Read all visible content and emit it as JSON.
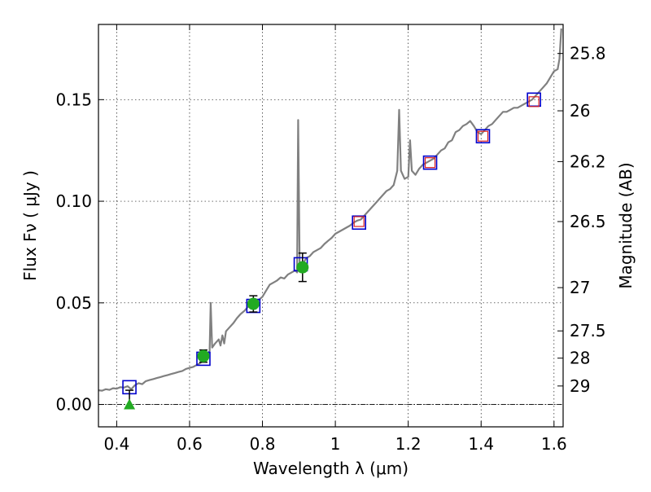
{
  "chart_data": {
    "type": "scatter",
    "title": "",
    "xlabel": "Wavelength  λ (μm)",
    "ylabel": "Flux  Fν  ( μJy )",
    "y2label": "Magnitude (AB)",
    "xlim": [
      0.35,
      1.625
    ],
    "ylim": [
      -0.011,
      0.187
    ],
    "x_ticks": [
      0.4,
      0.6,
      0.8,
      1.0,
      1.2,
      1.4,
      1.6
    ],
    "x_tick_labels": [
      "0.4",
      "0.6",
      "0.8",
      "1",
      "1.2",
      "1.4",
      "1.6"
    ],
    "y_ticks": [
      0.0,
      0.05,
      0.1,
      0.15
    ],
    "y_tick_labels": [
      "0.00",
      "0.05",
      "0.10",
      "0.15"
    ],
    "y2_ticks": [
      {
        "label": "25.8",
        "flux": 0.1727
      },
      {
        "label": "26",
        "flux": 0.1445
      },
      {
        "label": "26.2",
        "flux": 0.1195
      },
      {
        "label": "26.5",
        "flux": 0.09
      },
      {
        "label": "27",
        "flux": 0.0575
      },
      {
        "label": "27.5",
        "flux": 0.0362
      },
      {
        "label": "28",
        "flux": 0.0228
      },
      {
        "label": "29",
        "flux": 0.0091
      }
    ],
    "grid": true,
    "zero_line": true,
    "colors": {
      "model": "#808080",
      "model_photometry": "#0000cc",
      "photometry_points": "#22aa22",
      "photometry_squares": "#dd2222",
      "errorbar": "#000000",
      "zero_line": "#000000"
    },
    "series": [
      {
        "kind": "line",
        "points": [
          [
            0.35,
            0.007
          ],
          [
            0.36,
            0.0068
          ],
          [
            0.37,
            0.0075
          ],
          [
            0.38,
            0.0072
          ],
          [
            0.39,
            0.008
          ],
          [
            0.4,
            0.0078
          ],
          [
            0.41,
            0.0085
          ],
          [
            0.42,
            0.0083
          ],
          [
            0.43,
            0.009
          ],
          [
            0.44,
            0.0075
          ],
          [
            0.45,
            0.0095
          ],
          [
            0.46,
            0.0105
          ],
          [
            0.47,
            0.01
          ],
          [
            0.48,
            0.0115
          ],
          [
            0.49,
            0.012
          ],
          [
            0.5,
            0.0125
          ],
          [
            0.51,
            0.013
          ],
          [
            0.52,
            0.0135
          ],
          [
            0.53,
            0.014
          ],
          [
            0.54,
            0.0145
          ],
          [
            0.55,
            0.015
          ],
          [
            0.56,
            0.0155
          ],
          [
            0.57,
            0.016
          ],
          [
            0.58,
            0.0165
          ],
          [
            0.59,
            0.0175
          ],
          [
            0.6,
            0.018
          ],
          [
            0.61,
            0.0185
          ],
          [
            0.62,
            0.0195
          ],
          [
            0.63,
            0.0205
          ],
          [
            0.64,
            0.022
          ],
          [
            0.65,
            0.024
          ],
          [
            0.655,
            0.0265
          ],
          [
            0.658,
            0.05
          ],
          [
            0.662,
            0.028
          ],
          [
            0.67,
            0.03
          ],
          [
            0.68,
            0.032
          ],
          [
            0.685,
            0.029
          ],
          [
            0.69,
            0.034
          ],
          [
            0.695,
            0.03
          ],
          [
            0.7,
            0.036
          ],
          [
            0.71,
            0.038
          ],
          [
            0.72,
            0.04
          ],
          [
            0.73,
            0.0425
          ],
          [
            0.74,
            0.0445
          ],
          [
            0.75,
            0.046
          ],
          [
            0.76,
            0.048
          ],
          [
            0.77,
            0.049
          ],
          [
            0.78,
            0.05
          ],
          [
            0.79,
            0.0515
          ],
          [
            0.8,
            0.053
          ],
          [
            0.81,
            0.056
          ],
          [
            0.82,
            0.059
          ],
          [
            0.83,
            0.06
          ],
          [
            0.84,
            0.061
          ],
          [
            0.85,
            0.0625
          ],
          [
            0.86,
            0.062
          ],
          [
            0.87,
            0.064
          ],
          [
            0.88,
            0.065
          ],
          [
            0.89,
            0.066
          ],
          [
            0.895,
            0.065
          ],
          [
            0.898,
            0.14
          ],
          [
            0.902,
            0.07
          ],
          [
            0.91,
            0.069
          ],
          [
            0.92,
            0.072
          ],
          [
            0.93,
            0.073
          ],
          [
            0.94,
            0.075
          ],
          [
            0.95,
            0.076
          ],
          [
            0.96,
            0.077
          ],
          [
            0.97,
            0.079
          ],
          [
            0.98,
            0.0805
          ],
          [
            0.99,
            0.082
          ],
          [
            1.0,
            0.084
          ],
          [
            1.01,
            0.085
          ],
          [
            1.02,
            0.086
          ],
          [
            1.03,
            0.087
          ],
          [
            1.04,
            0.088
          ],
          [
            1.05,
            0.0895
          ],
          [
            1.06,
            0.0905
          ],
          [
            1.07,
            0.091
          ],
          [
            1.08,
            0.093
          ],
          [
            1.09,
            0.095
          ],
          [
            1.1,
            0.097
          ],
          [
            1.11,
            0.099
          ],
          [
            1.12,
            0.101
          ],
          [
            1.13,
            0.103
          ],
          [
            1.14,
            0.105
          ],
          [
            1.15,
            0.106
          ],
          [
            1.16,
            0.108
          ],
          [
            1.17,
            0.115
          ],
          [
            1.175,
            0.145
          ],
          [
            1.18,
            0.115
          ],
          [
            1.19,
            0.111
          ],
          [
            1.2,
            0.112
          ],
          [
            1.205,
            0.13
          ],
          [
            1.21,
            0.115
          ],
          [
            1.22,
            0.113
          ],
          [
            1.23,
            0.116
          ],
          [
            1.24,
            0.118
          ],
          [
            1.25,
            0.119
          ],
          [
            1.26,
            0.12
          ],
          [
            1.27,
            0.121
          ],
          [
            1.28,
            0.123
          ],
          [
            1.29,
            0.125
          ],
          [
            1.3,
            0.126
          ],
          [
            1.31,
            0.129
          ],
          [
            1.32,
            0.13
          ],
          [
            1.33,
            0.134
          ],
          [
            1.34,
            0.135
          ],
          [
            1.35,
            0.137
          ],
          [
            1.36,
            0.138
          ],
          [
            1.37,
            0.1395
          ],
          [
            1.38,
            0.137
          ],
          [
            1.39,
            0.134
          ],
          [
            1.4,
            0.133
          ],
          [
            1.41,
            0.135
          ],
          [
            1.42,
            0.137
          ],
          [
            1.43,
            0.138
          ],
          [
            1.44,
            0.14
          ],
          [
            1.45,
            0.142
          ],
          [
            1.46,
            0.144
          ],
          [
            1.47,
            0.144
          ],
          [
            1.48,
            0.145
          ],
          [
            1.49,
            0.146
          ],
          [
            1.5,
            0.146
          ],
          [
            1.51,
            0.147
          ],
          [
            1.52,
            0.148
          ],
          [
            1.53,
            0.149
          ],
          [
            1.54,
            0.15
          ],
          [
            1.55,
            0.152
          ],
          [
            1.56,
            0.154
          ],
          [
            1.57,
            0.156
          ],
          [
            1.58,
            0.158
          ],
          [
            1.59,
            0.161
          ],
          [
            1.6,
            0.164
          ],
          [
            1.61,
            0.165
          ],
          [
            1.615,
            0.17
          ],
          [
            1.62,
            0.185
          ]
        ]
      },
      {
        "kind": "open-square",
        "points": [
          [
            0.435,
            0.0085
          ],
          [
            0.638,
            0.0225
          ],
          [
            0.775,
            0.0485
          ],
          [
            0.905,
            0.069
          ],
          [
            1.065,
            0.0895
          ],
          [
            1.26,
            0.119
          ],
          [
            1.405,
            0.132
          ],
          [
            1.545,
            0.15
          ]
        ]
      },
      {
        "kind": "small-open-square",
        "points": [
          [
            1.065,
            0.09
          ],
          [
            1.26,
            0.119
          ],
          [
            1.405,
            0.132
          ],
          [
            1.545,
            0.149
          ]
        ]
      },
      {
        "kind": "filled-circle-errorbar",
        "points": [
          {
            "x": 0.638,
            "y": 0.0238,
            "yerr": 0.003
          },
          {
            "x": 0.775,
            "y": 0.0495,
            "yerr": 0.004
          },
          {
            "x": 0.91,
            "y": 0.0675,
            "yerr": 0.007
          }
        ]
      },
      {
        "kind": "upper-limit-triangle",
        "points": [
          {
            "x": 0.435,
            "y": 0.0,
            "yerr_up": 0.007
          }
        ]
      }
    ]
  }
}
